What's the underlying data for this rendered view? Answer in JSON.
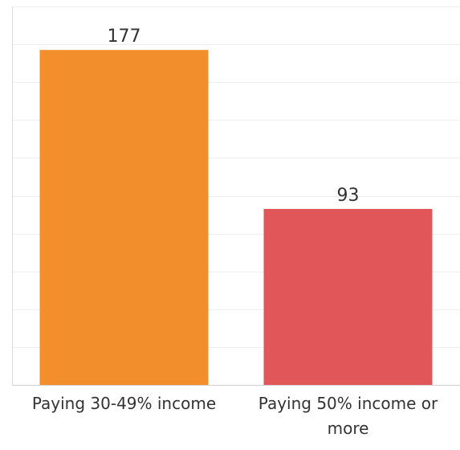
{
  "chart_data": {
    "type": "bar",
    "title": "",
    "xlabel": "",
    "ylabel": "",
    "categories": [
      [
        "Paying 30-49% income"
      ],
      [
        "Paying 50% income or",
        "more"
      ]
    ],
    "values": [
      177,
      93
    ],
    "data_labels": [
      "177",
      "93"
    ],
    "colors": [
      "#f28e2b",
      "#e15759"
    ],
    "ylim": [
      0,
      200
    ],
    "grid": true,
    "legend": "none"
  }
}
